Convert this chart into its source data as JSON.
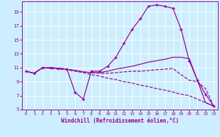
{
  "xlabel": "Windchill (Refroidissement éolien,°C)",
  "bg_color": "#cceeff",
  "grid_color": "#ffffff",
  "line_color": "#990099",
  "xlim": [
    -0.5,
    23.5
  ],
  "ylim": [
    5,
    20.5
  ],
  "yticks": [
    5,
    7,
    9,
    11,
    13,
    15,
    17,
    19
  ],
  "xticks": [
    0,
    1,
    2,
    3,
    4,
    5,
    6,
    7,
    8,
    9,
    10,
    11,
    12,
    13,
    14,
    15,
    16,
    17,
    18,
    19,
    20,
    21,
    22,
    23
  ],
  "series": [
    {
      "x": [
        0,
        1,
        2,
        3,
        4,
        5,
        6,
        7,
        8,
        9,
        10,
        11,
        12,
        13,
        14,
        15,
        16,
        17,
        18,
        19,
        20,
        21,
        22,
        23
      ],
      "y": [
        10.5,
        10.2,
        11.0,
        11.0,
        10.9,
        10.8,
        7.5,
        6.5,
        10.5,
        10.5,
        11.2,
        12.5,
        14.5,
        16.5,
        18.0,
        19.8,
        20.0,
        19.8,
        19.5,
        16.5,
        12.0,
        9.2,
        7.2,
        5.5
      ],
      "linestyle": "-",
      "marker": "+",
      "markersize": 3,
      "linewidth": 0.9
    },
    {
      "x": [
        0,
        1,
        2,
        3,
        4,
        5,
        6,
        7,
        8,
        9,
        10,
        11,
        12,
        13,
        14,
        15,
        16,
        17,
        18,
        19,
        20,
        21,
        22,
        23
      ],
      "y": [
        10.5,
        10.2,
        11.0,
        11.0,
        10.9,
        10.8,
        10.6,
        10.4,
        10.3,
        10.3,
        10.5,
        10.8,
        11.0,
        11.2,
        11.5,
        11.8,
        12.0,
        12.2,
        12.5,
        12.5,
        12.3,
        9.2,
        6.0,
        5.5
      ],
      "linestyle": "-",
      "marker": null,
      "markersize": 0,
      "linewidth": 0.9
    },
    {
      "x": [
        0,
        1,
        2,
        3,
        4,
        5,
        6,
        7,
        8,
        9,
        10,
        11,
        12,
        13,
        14,
        15,
        16,
        17,
        18,
        19,
        20,
        21,
        22,
        23
      ],
      "y": [
        10.5,
        10.2,
        11.0,
        11.0,
        10.9,
        10.8,
        10.6,
        10.4,
        10.3,
        10.2,
        10.2,
        10.3,
        10.4,
        10.5,
        10.5,
        10.6,
        10.7,
        10.8,
        10.9,
        10.0,
        9.2,
        9.0,
        8.0,
        5.5
      ],
      "linestyle": "--",
      "marker": null,
      "markersize": 0,
      "linewidth": 0.9
    },
    {
      "x": [
        0,
        1,
        2,
        3,
        4,
        5,
        6,
        7,
        8,
        9,
        10,
        11,
        12,
        13,
        14,
        15,
        16,
        17,
        18,
        19,
        20,
        21,
        22,
        23
      ],
      "y": [
        10.5,
        10.2,
        11.0,
        10.9,
        10.8,
        10.7,
        10.5,
        10.3,
        10.0,
        9.8,
        9.5,
        9.3,
        9.0,
        8.8,
        8.5,
        8.3,
        8.0,
        7.8,
        7.5,
        7.2,
        7.0,
        6.5,
        6.0,
        5.5
      ],
      "linestyle": "--",
      "marker": null,
      "markersize": 0,
      "linewidth": 0.9
    }
  ]
}
